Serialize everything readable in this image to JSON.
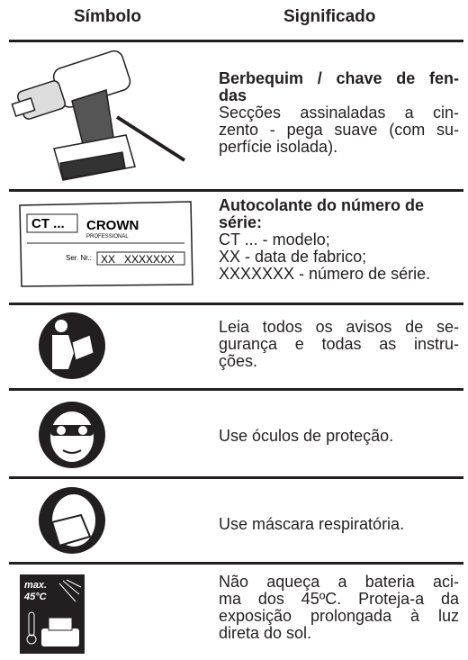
{
  "header": {
    "symbol": "Símbolo",
    "meaning": "Significado"
  },
  "rows": [
    {
      "bold": [
        "Berbequim / chave de fen-",
        "das"
      ],
      "text": [
        "Secções assinaladas a cin-",
        "zento - pega suave (com su-",
        "perfície isolada)."
      ]
    },
    {
      "label": {
        "model": "CT ...",
        "brand": "CROWN",
        "brand_sub": "PROFESSIONAL",
        "serial_label": "Ser. Nr.:",
        "serial_date": "XX",
        "serial_number": "XXXXXXX"
      },
      "bold": [
        "Autocolante do número de",
        "série:"
      ],
      "text": [
        "CT ... - modelo;",
        "XX - data de fabrico;",
        "XXXXXXX - número de série."
      ]
    },
    {
      "text": [
        "Leia todos os avisos de se-",
        "gurança e todas as instru-",
        "ções."
      ]
    },
    {
      "text": [
        "Use óculos de proteção."
      ]
    },
    {
      "text": [
        "Use máscara respiratória."
      ]
    },
    {
      "icon": {
        "max": "max.",
        "temp": "45°C"
      },
      "text": [
        "Não aqueça a bateria aci-",
        "ma dos 45ºC. Proteja-a da",
        "exposição prolongada à luz",
        "direta do sol."
      ]
    }
  ]
}
